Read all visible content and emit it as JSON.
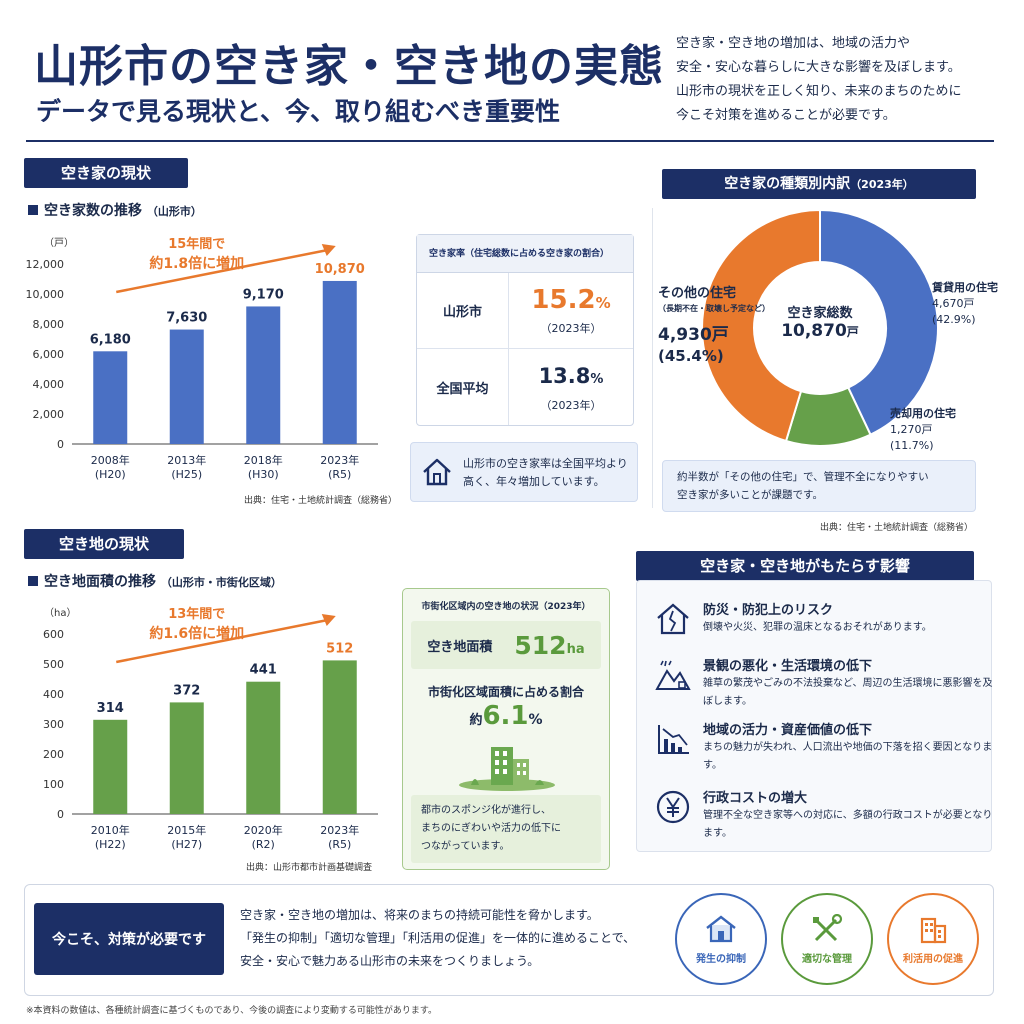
{
  "header": {
    "title": "山形市の空き家・空き地の実態",
    "subtitle": "データで見る現状と、今、取り組むべき重要性",
    "intro": [
      "空き家・空き地の増加は、地域の活力や",
      "安全・安心な暮らしに大きな影響を及ぼします。",
      "山形市の現状を正しく知り、未来のまちのために",
      "今こそ対策を進めることが必要です。"
    ]
  },
  "akiya": {
    "section": "空き家の現状",
    "chart_title": "空き家数の推移",
    "chart_region": "（山形市）",
    "source": "出典：住宅・土地統計調査（総務省）",
    "growth_line1": "15年間で",
    "growth_line2": "約1.8倍に増加",
    "rate": {
      "header": "空き家率（住宅総数に占める空き家の割合）",
      "city_label": "山形市",
      "city_value": "15.2",
      "city_unit": "%",
      "city_year": "（2023年）",
      "nat_label": "全国平均",
      "nat_value": "13.8",
      "nat_unit": "%",
      "nat_year": "（2023年）"
    },
    "note_line1": "山形市の空き家率は全国平均より",
    "note_line2": "高く、年々増加しています。"
  },
  "breakdown": {
    "section": "空き家の種類別内訳",
    "section_year": "（2023年）",
    "center_label": "空き家総数",
    "center_value": "10,870",
    "center_unit": "戸",
    "rent_label": "賃貸用の住宅",
    "rent_value": "4,670戸",
    "rent_pct": "(42.9%)",
    "sale_label": "売却用の住宅",
    "sale_value": "1,270戸",
    "sale_pct": "(11.7%)",
    "other_label": "その他の住宅",
    "other_sub": "（長期不在・取壊し予定など）",
    "other_value": "4,930戸",
    "other_pct": "(45.4%)",
    "note_line1": "約半数が「その他の住宅」で、管理不全になりやすい",
    "note_line2": "空き家が多いことが課題です。",
    "source": "出典：住宅・土地統計調査（総務省）"
  },
  "akichi": {
    "section": "空き地の現状",
    "chart_title": "空き地面積の推移",
    "chart_region": "（山形市・市街化区域）",
    "source": "出典：山形市都市計画基礎調査",
    "growth_line1": "13年間で",
    "growth_line2": "約1.6倍に増加",
    "box": {
      "header": "市街化区域内の空き地の状況（2023年）",
      "area_label": "空き地面積",
      "area_value": "512",
      "area_unit": "ha",
      "share_label": "市街化区域面積に占める割合",
      "share_prefix": "約",
      "share_value": "6.1",
      "share_unit": "%",
      "note_line1": "都市のスポンジ化が進行し、",
      "note_line2": "まちのにぎわいや活力の低下に",
      "note_line3": "つながっています。"
    }
  },
  "impact": {
    "section": "空き家・空き地がもたらす影響",
    "items": [
      {
        "icon": "house-crack-icon",
        "title": "防災・防犯上のリスク",
        "desc": "倒壊や火災、犯罪の温床となるおそれがあります。"
      },
      {
        "icon": "mountain-trash-icon",
        "title": "景観の悪化・生活環境の低下",
        "desc": "雑草の繁茂やごみの不法投棄など、周辺の生活環境に悪影響を及ぼします。"
      },
      {
        "icon": "decline-chart-icon",
        "title": "地域の活力・資産価値の低下",
        "desc": "まちの魅力が失われ、人口流出や地価の下落を招く要因となります。"
      },
      {
        "icon": "yen-icon",
        "title": "行政コストの増大",
        "desc": "管理不全な空き家等への対応に、多額の行政コストが必要となります。"
      }
    ]
  },
  "bottom": {
    "callout": "今こそ、対策が必要です",
    "lines": [
      "空き家・空き地の増加は、将来のまちの持続可能性を脅かします。",
      "「発生の抑制」「適切な管理」「利活用の促進」を一体的に進めることで、",
      "安全・安心で魅力ある山形市の未来をつくりましょう。"
    ],
    "circles": [
      {
        "label": "発生の抑制",
        "color": "#3a66b8",
        "icon": "house-icon"
      },
      {
        "label": "適切な管理",
        "color": "#5a9a3c",
        "icon": "tools-icon"
      },
      {
        "label": "利活用の促進",
        "color": "#e8792d",
        "icon": "buildings-icon"
      }
    ],
    "footnote": "※本資料の数値は、各種統計調査に基づくものであり、今後の調査により変動する可能性があります。"
  },
  "colors": {
    "navy": "#1c2f66",
    "blue": "#4a70c4",
    "green": "#66a04a",
    "orange": "#e8792d"
  },
  "chart_data": [
    {
      "type": "bar",
      "title": "空き家数の推移",
      "ylabel": "（戸）",
      "categories": [
        "2008年",
        "2013年",
        "2018年",
        "2023年"
      ],
      "categories_sub": [
        "(H20)",
        "(H25)",
        "(H30)",
        "(R5)"
      ],
      "values": [
        6180,
        7630,
        9170,
        10870
      ],
      "value_labels": [
        "6,180",
        "7,630",
        "9,170",
        "10,870"
      ],
      "ylim": [
        0,
        12000
      ],
      "yticks": [
        0,
        2000,
        4000,
        6000,
        8000,
        10000,
        12000
      ],
      "ytick_labels": [
        "0",
        "2,000",
        "4,000",
        "6,000",
        "8,000",
        "10,000",
        "12,000"
      ],
      "color": "#4a70c4",
      "highlight_color": "#e8792d"
    },
    {
      "type": "pie",
      "title": "空き家の種類別内訳",
      "labels": [
        "賃貸用の住宅",
        "売却用の住宅",
        "その他の住宅"
      ],
      "values": [
        4670,
        1270,
        4930
      ],
      "percent": [
        42.9,
        11.7,
        45.4
      ],
      "colors": [
        "#4a70c4",
        "#66a04a",
        "#e8792d"
      ]
    },
    {
      "type": "bar",
      "title": "空き地面積の推移",
      "ylabel": "（ha）",
      "categories": [
        "2010年",
        "2015年",
        "2020年",
        "2023年"
      ],
      "categories_sub": [
        "(H22)",
        "(H27)",
        "(R2)",
        "(R5)"
      ],
      "values": [
        314,
        372,
        441,
        512
      ],
      "value_labels": [
        "314",
        "372",
        "441",
        "512"
      ],
      "ylim": [
        0,
        600
      ],
      "yticks": [
        0,
        100,
        200,
        300,
        400,
        500,
        600
      ],
      "ytick_labels": [
        "0",
        "100",
        "200",
        "300",
        "400",
        "500",
        "600"
      ],
      "color": "#66a04a",
      "highlight_color": "#e8792d"
    }
  ]
}
